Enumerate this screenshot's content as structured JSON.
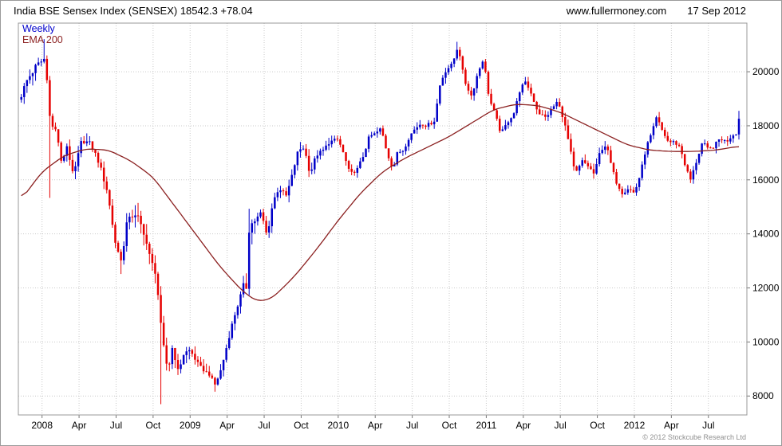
{
  "header": {
    "title": "India BSE Sensex Index (SENSEX) 18542.3 +78.04",
    "website": "www.fullermoney.com",
    "date": "17 Sep 2012"
  },
  "footer": {
    "copyright": "© 2012 Stockcube Research Ltd"
  },
  "chart_data": {
    "type": "candlestick",
    "title": "India BSE Sensex Index (SENSEX) 18542.3 +78.04",
    "timeframe_label": "Weekly",
    "overlay_label": "EMA 200",
    "last_close": 18542.3,
    "change": "+78.04",
    "ylim": [
      7300,
      21800
    ],
    "yticks": [
      8000,
      10000,
      12000,
      14000,
      16000,
      18000,
      20000
    ],
    "x_range": [
      2007.84,
      2012.76
    ],
    "xticks": [
      {
        "t": 2008.0,
        "label": "2008"
      },
      {
        "t": 2008.25,
        "label": "Apr"
      },
      {
        "t": 2008.5,
        "label": "Jul"
      },
      {
        "t": 2008.75,
        "label": "Oct"
      },
      {
        "t": 2009.0,
        "label": "2009"
      },
      {
        "t": 2009.25,
        "label": "Apr"
      },
      {
        "t": 2009.5,
        "label": "Jul"
      },
      {
        "t": 2009.75,
        "label": "Oct"
      },
      {
        "t": 2010.0,
        "label": "2010"
      },
      {
        "t": 2010.25,
        "label": "Apr"
      },
      {
        "t": 2010.5,
        "label": "Jul"
      },
      {
        "t": 2010.75,
        "label": "Oct"
      },
      {
        "t": 2011.0,
        "label": "2011"
      },
      {
        "t": 2011.25,
        "label": "Apr"
      },
      {
        "t": 2011.5,
        "label": "Jul"
      },
      {
        "t": 2011.75,
        "label": "Oct"
      },
      {
        "t": 2012.0,
        "label": "2012"
      },
      {
        "t": 2012.25,
        "label": "Apr"
      },
      {
        "t": 2012.5,
        "label": "Jul"
      }
    ],
    "colors": {
      "up": "#0000c8",
      "down": "#e60000",
      "ema": "#8b2020",
      "grid": "#c9c9c9",
      "frame": "#999999",
      "tick": "#777777"
    },
    "spikes": [
      [
        2008.02,
        21206,
        "high"
      ],
      [
        2008.06,
        15332,
        "low"
      ],
      [
        2008.54,
        12514,
        "low"
      ],
      [
        2008.81,
        7697,
        "low"
      ],
      [
        2009.17,
        8160,
        "low"
      ],
      [
        2009.4,
        14930,
        "high"
      ],
      [
        2010.81,
        21108,
        "high"
      ],
      [
        2012.71,
        18553,
        "high"
      ]
    ],
    "close_path": [
      [
        2007.85,
        19000
      ],
      [
        2007.9,
        19700
      ],
      [
        2007.96,
        20200
      ],
      [
        2008.02,
        20500
      ],
      [
        2008.06,
        18000
      ],
      [
        2008.1,
        17800
      ],
      [
        2008.13,
        16600
      ],
      [
        2008.17,
        17300
      ],
      [
        2008.21,
        16100
      ],
      [
        2008.27,
        17500
      ],
      [
        2008.33,
        17300
      ],
      [
        2008.38,
        16700
      ],
      [
        2008.44,
        15600
      ],
      [
        2008.5,
        13500
      ],
      [
        2008.54,
        13000
      ],
      [
        2008.58,
        14700
      ],
      [
        2008.65,
        14600
      ],
      [
        2008.69,
        14000
      ],
      [
        2008.73,
        13100
      ],
      [
        2008.77,
        12500
      ],
      [
        2008.81,
        10200
      ],
      [
        2008.85,
        8900
      ],
      [
        2008.88,
        9800
      ],
      [
        2008.92,
        8900
      ],
      [
        2008.96,
        9600
      ],
      [
        2009.0,
        9700
      ],
      [
        2009.04,
        9300
      ],
      [
        2009.08,
        9000
      ],
      [
        2009.13,
        8800
      ],
      [
        2009.17,
        8400
      ],
      [
        2009.21,
        9000
      ],
      [
        2009.25,
        9900
      ],
      [
        2009.29,
        10800
      ],
      [
        2009.33,
        11500
      ],
      [
        2009.36,
        12100
      ],
      [
        2009.38,
        12000
      ],
      [
        2009.4,
        14300
      ],
      [
        2009.44,
        14500
      ],
      [
        2009.48,
        14800
      ],
      [
        2009.52,
        13900
      ],
      [
        2009.56,
        15200
      ],
      [
        2009.6,
        15700
      ],
      [
        2009.65,
        15400
      ],
      [
        2009.69,
        16200
      ],
      [
        2009.73,
        17100
      ],
      [
        2009.77,
        17200
      ],
      [
        2009.81,
        16200
      ],
      [
        2009.85,
        16900
      ],
      [
        2009.9,
        17100
      ],
      [
        2009.94,
        17400
      ],
      [
        2010.0,
        17500
      ],
      [
        2010.04,
        16900
      ],
      [
        2010.08,
        16200
      ],
      [
        2010.13,
        16400
      ],
      [
        2010.17,
        16900
      ],
      [
        2010.21,
        17600
      ],
      [
        2010.25,
        17700
      ],
      [
        2010.29,
        17900
      ],
      [
        2010.33,
        17000
      ],
      [
        2010.37,
        16400
      ],
      [
        2010.4,
        17000
      ],
      [
        2010.44,
        17100
      ],
      [
        2010.48,
        17600
      ],
      [
        2010.52,
        17900
      ],
      [
        2010.56,
        18100
      ],
      [
        2010.6,
        18000
      ],
      [
        2010.65,
        18200
      ],
      [
        2010.69,
        19600
      ],
      [
        2010.73,
        20100
      ],
      [
        2010.77,
        20250
      ],
      [
        2010.81,
        21000
      ],
      [
        2010.85,
        19700
      ],
      [
        2010.9,
        19100
      ],
      [
        2010.94,
        19900
      ],
      [
        2010.98,
        20500
      ],
      [
        2011.02,
        19000
      ],
      [
        2011.06,
        18400
      ],
      [
        2011.1,
        17700
      ],
      [
        2011.15,
        18200
      ],
      [
        2011.19,
        18500
      ],
      [
        2011.23,
        19400
      ],
      [
        2011.27,
        19600
      ],
      [
        2011.31,
        19100
      ],
      [
        2011.35,
        18500
      ],
      [
        2011.4,
        18300
      ],
      [
        2011.44,
        18600
      ],
      [
        2011.48,
        18900
      ],
      [
        2011.52,
        18300
      ],
      [
        2011.56,
        17300
      ],
      [
        2011.6,
        16200
      ],
      [
        2011.65,
        16700
      ],
      [
        2011.69,
        16500
      ],
      [
        2011.73,
        16200
      ],
      [
        2011.77,
        17100
      ],
      [
        2011.81,
        17300
      ],
      [
        2011.85,
        16400
      ],
      [
        2011.88,
        15900
      ],
      [
        2011.92,
        15500
      ],
      [
        2011.96,
        15700
      ],
      [
        2012.0,
        15500
      ],
      [
        2012.04,
        16200
      ],
      [
        2012.08,
        17200
      ],
      [
        2012.12,
        17750
      ],
      [
        2012.15,
        18300
      ],
      [
        2012.19,
        17800
      ],
      [
        2012.23,
        17400
      ],
      [
        2012.27,
        17400
      ],
      [
        2012.31,
        17200
      ],
      [
        2012.35,
        16400
      ],
      [
        2012.38,
        16000
      ],
      [
        2012.42,
        16700
      ],
      [
        2012.46,
        17400
      ],
      [
        2012.5,
        17100
      ],
      [
        2012.54,
        17250
      ],
      [
        2012.58,
        17550
      ],
      [
        2012.62,
        17400
      ],
      [
        2012.66,
        17650
      ],
      [
        2012.69,
        17750
      ],
      [
        2012.715,
        18542
      ]
    ],
    "ema_path": [
      [
        2007.85,
        15200
      ],
      [
        2008.0,
        16300
      ],
      [
        2008.15,
        16900
      ],
      [
        2008.3,
        17150
      ],
      [
        2008.45,
        17100
      ],
      [
        2008.6,
        16700
      ],
      [
        2008.75,
        16100
      ],
      [
        2008.9,
        15000
      ],
      [
        2009.05,
        13900
      ],
      [
        2009.2,
        12800
      ],
      [
        2009.35,
        11900
      ],
      [
        2009.45,
        11500
      ],
      [
        2009.55,
        11600
      ],
      [
        2009.7,
        12400
      ],
      [
        2009.85,
        13400
      ],
      [
        2010.0,
        14500
      ],
      [
        2010.15,
        15500
      ],
      [
        2010.3,
        16300
      ],
      [
        2010.45,
        16800
      ],
      [
        2010.6,
        17200
      ],
      [
        2010.75,
        17600
      ],
      [
        2010.9,
        18100
      ],
      [
        2011.05,
        18600
      ],
      [
        2011.2,
        18800
      ],
      [
        2011.35,
        18750
      ],
      [
        2011.5,
        18500
      ],
      [
        2011.65,
        18100
      ],
      [
        2011.8,
        17700
      ],
      [
        2011.95,
        17300
      ],
      [
        2012.1,
        17100
      ],
      [
        2012.25,
        17050
      ],
      [
        2012.4,
        17050
      ],
      [
        2012.55,
        17100
      ],
      [
        2012.715,
        17250
      ]
    ]
  }
}
